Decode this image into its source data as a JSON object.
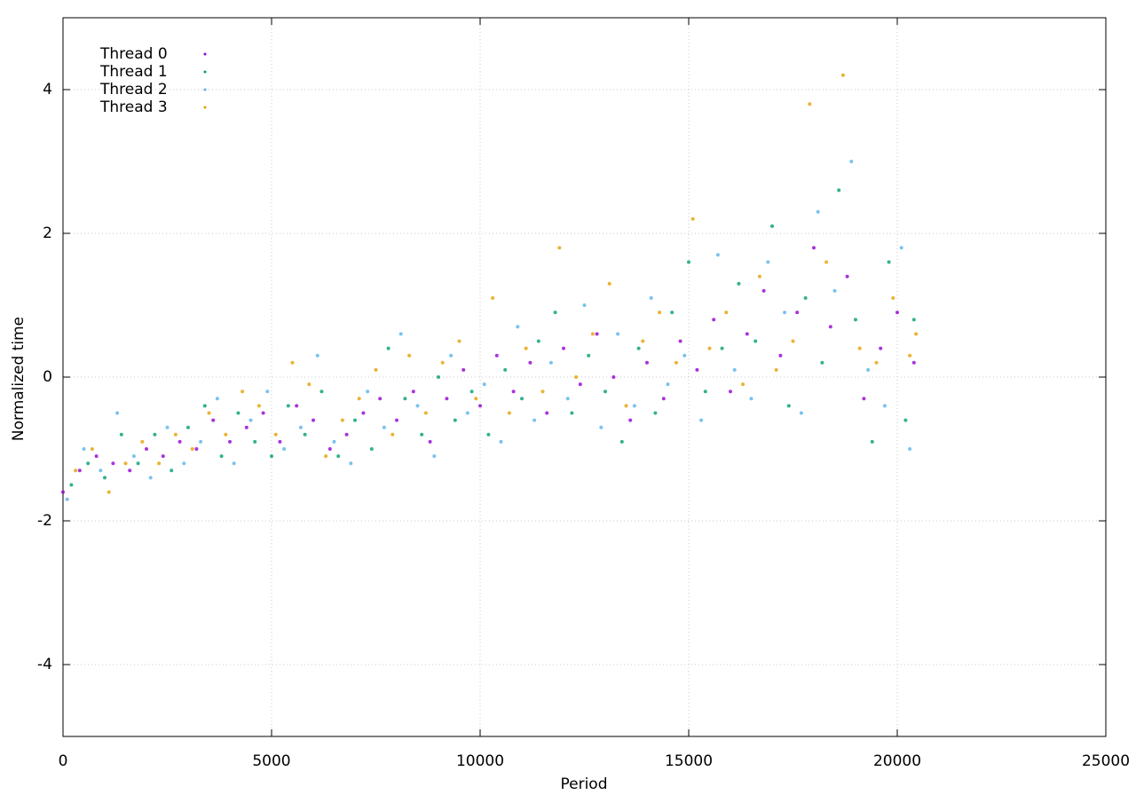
{
  "chart_data": {
    "type": "scatter",
    "x_label": "Period",
    "y_label": "Normalized time",
    "xlim": [
      0,
      25000
    ],
    "xticks": [
      0,
      5000,
      10000,
      15000,
      20000,
      25000
    ],
    "ylim": [
      -5,
      5
    ],
    "yticks": [
      -4,
      -2,
      0,
      2,
      4
    ],
    "grid": true,
    "legend": "top-left",
    "series": [
      {
        "name": "Thread 0",
        "color": "#9400d3",
        "x": [
          0,
          400,
          800,
          1200,
          1600,
          2000,
          2400,
          2800,
          3200,
          3600,
          4000,
          4400,
          4800,
          5200,
          5600,
          6000,
          6400,
          6800,
          7200,
          7600,
          8000,
          8400,
          8800,
          9200,
          9600,
          10000,
          10400,
          10800,
          11200,
          11600,
          12000,
          12400,
          12800,
          13200,
          13600,
          14000,
          14400,
          14800,
          15200,
          15600,
          16000,
          16400,
          16800,
          17200,
          17600,
          18000,
          18400,
          18800,
          19200,
          19600,
          20000,
          20400
        ],
        "y": [
          -1.6,
          -1.3,
          -1.1,
          -1.2,
          -1.3,
          -1.0,
          -1.1,
          -0.9,
          -1.0,
          -0.6,
          -0.9,
          -0.7,
          -0.5,
          -0.9,
          -0.4,
          -0.6,
          -1.0,
          -0.8,
          -0.5,
          -0.3,
          -0.6,
          -0.2,
          -0.9,
          -0.3,
          0.1,
          -0.4,
          0.3,
          -0.2,
          0.2,
          -0.5,
          0.4,
          -0.1,
          0.6,
          0.0,
          -0.6,
          0.2,
          -0.3,
          0.5,
          0.1,
          0.8,
          -0.2,
          0.6,
          1.2,
          0.3,
          0.9,
          1.8,
          0.7,
          1.4,
          -0.3,
          0.4,
          0.9,
          0.2
        ]
      },
      {
        "name": "Thread 1",
        "color": "#009e73",
        "x": [
          200,
          600,
          1000,
          1400,
          1800,
          2200,
          2600,
          3000,
          3400,
          3800,
          4200,
          4600,
          5000,
          5400,
          5800,
          6200,
          6600,
          7000,
          7400,
          7800,
          8200,
          8600,
          9000,
          9400,
          9800,
          10200,
          10600,
          11000,
          11400,
          11800,
          12200,
          12600,
          13000,
          13400,
          13800,
          14200,
          14600,
          15000,
          15400,
          15800,
          16200,
          16600,
          17000,
          17400,
          17800,
          18200,
          18600,
          19000,
          19400,
          19800,
          20200,
          20400
        ],
        "y": [
          -1.5,
          -1.2,
          -1.4,
          -0.8,
          -1.2,
          -0.8,
          -1.3,
          -0.7,
          -0.4,
          -1.1,
          -0.5,
          -0.9,
          -1.1,
          -0.4,
          -0.8,
          -0.2,
          -1.1,
          -0.6,
          -1.0,
          0.4,
          -0.3,
          -0.8,
          0.0,
          -0.6,
          -0.2,
          -0.8,
          0.1,
          -0.3,
          0.5,
          0.9,
          -0.5,
          0.3,
          -0.2,
          -0.9,
          0.4,
          -0.5,
          0.9,
          1.6,
          -0.2,
          0.4,
          1.3,
          0.5,
          2.1,
          -0.4,
          1.1,
          0.2,
          2.6,
          0.8,
          -0.9,
          1.6,
          -0.6,
          0.8
        ]
      },
      {
        "name": "Thread 2",
        "color": "#56b4e9",
        "x": [
          100,
          500,
          900,
          1300,
          1700,
          2100,
          2500,
          2900,
          3300,
          3700,
          4100,
          4500,
          4900,
          5300,
          5700,
          6100,
          6500,
          6900,
          7300,
          7700,
          8100,
          8500,
          8900,
          9300,
          9700,
          10100,
          10500,
          10900,
          11300,
          11700,
          12100,
          12500,
          12900,
          13300,
          13700,
          14100,
          14500,
          14900,
          15300,
          15700,
          16100,
          16500,
          16900,
          17300,
          17700,
          18100,
          18500,
          18900,
          19300,
          19700,
          20100,
          20300
        ],
        "y": [
          -1.7,
          -1.0,
          -1.3,
          -0.5,
          -1.1,
          -1.4,
          -0.7,
          -1.2,
          -0.9,
          -0.3,
          -1.2,
          -0.6,
          -0.2,
          -1.0,
          -0.7,
          0.3,
          -0.9,
          -1.2,
          -0.2,
          -0.7,
          0.6,
          -0.4,
          -1.1,
          0.3,
          -0.5,
          -0.1,
          -0.9,
          0.7,
          -0.6,
          0.2,
          -0.3,
          1.0,
          -0.7,
          0.6,
          -0.4,
          1.1,
          -0.1,
          0.3,
          -0.6,
          1.7,
          0.1,
          -0.3,
          1.6,
          0.9,
          -0.5,
          2.3,
          1.2,
          3.0,
          0.1,
          -0.4,
          1.8,
          -1.0
        ]
      },
      {
        "name": "Thread 3",
        "color": "#e69f00",
        "x": [
          300,
          700,
          1100,
          1500,
          1900,
          2300,
          2700,
          3100,
          3500,
          3900,
          4300,
          4700,
          5100,
          5500,
          5900,
          6300,
          6700,
          7100,
          7500,
          7900,
          8300,
          8700,
          9100,
          9500,
          9900,
          10300,
          10700,
          11100,
          11500,
          11900,
          12300,
          12700,
          13100,
          13500,
          13900,
          14300,
          14700,
          15100,
          15500,
          15900,
          16300,
          16700,
          17100,
          17500,
          17900,
          18300,
          18700,
          19100,
          19500,
          19900,
          20300,
          20450
        ],
        "y": [
          -1.3,
          -1.0,
          -1.6,
          -1.2,
          -0.9,
          -1.2,
          -0.8,
          -1.0,
          -0.5,
          -0.8,
          -0.2,
          -0.4,
          -0.8,
          0.2,
          -0.1,
          -1.1,
          -0.6,
          -0.3,
          0.1,
          -0.8,
          0.3,
          -0.5,
          0.2,
          0.5,
          -0.3,
          1.1,
          -0.5,
          0.4,
          -0.2,
          1.8,
          0.0,
          0.6,
          1.3,
          -0.4,
          0.5,
          0.9,
          0.2,
          2.2,
          0.4,
          0.9,
          -0.1,
          1.4,
          0.1,
          0.5,
          3.8,
          1.6,
          4.2,
          0.4,
          0.2,
          1.1,
          0.3,
          0.6
        ]
      }
    ]
  }
}
